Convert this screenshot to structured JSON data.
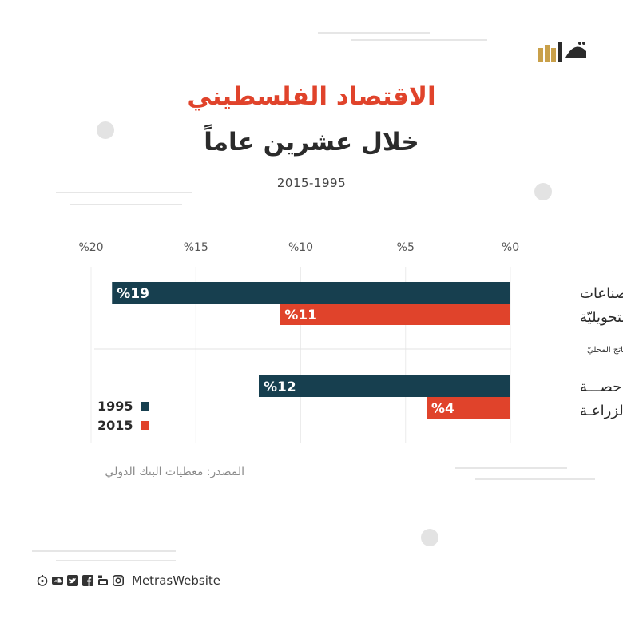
{
  "title": "الاقتصاد الفلسطيني",
  "subtitle": "خلال عشرين عاماً",
  "years": "2015-1995",
  "legend": [
    {
      "label": "1995",
      "color": "#173f4f"
    },
    {
      "label": "2015",
      "color": "#e0432b"
    }
  ],
  "source": "المصدر:  معطيات البنك الدولي",
  "footer": {
    "handle": "MetrasWebsite",
    "icons": [
      "instagram-icon",
      "youtube-icon",
      "facebook-icon",
      "twitter-icon",
      "soundcloud-icon",
      "metras-icon"
    ]
  },
  "chart_data": {
    "type": "bar",
    "orientation": "horizontal",
    "x_axis_direction": "right-to-left",
    "xlim": [
      0,
      20
    ],
    "ticks": [
      "%0",
      "%5",
      "%10",
      "%15",
      "%20"
    ],
    "tick_values": [
      0,
      5,
      10,
      15,
      20
    ],
    "grid": true,
    "groups": [
      {
        "label_lines": [
          "الصناعات",
          "التحويليّة"
        ],
        "values": [
          19,
          11
        ],
        "labels": [
          "%19",
          "%11"
        ]
      },
      {
        "label_lines": [
          "حصـــة",
          "الزراعـة"
        ],
        "values": [
          12,
          4
        ],
        "labels": [
          "%12",
          "%4"
        ]
      }
    ],
    "series": [
      {
        "name": "1995",
        "color": "#173f4f"
      },
      {
        "name": "2015",
        "color": "#e0432b"
      }
    ],
    "separator_note": "من الناتج المحليّ"
  }
}
